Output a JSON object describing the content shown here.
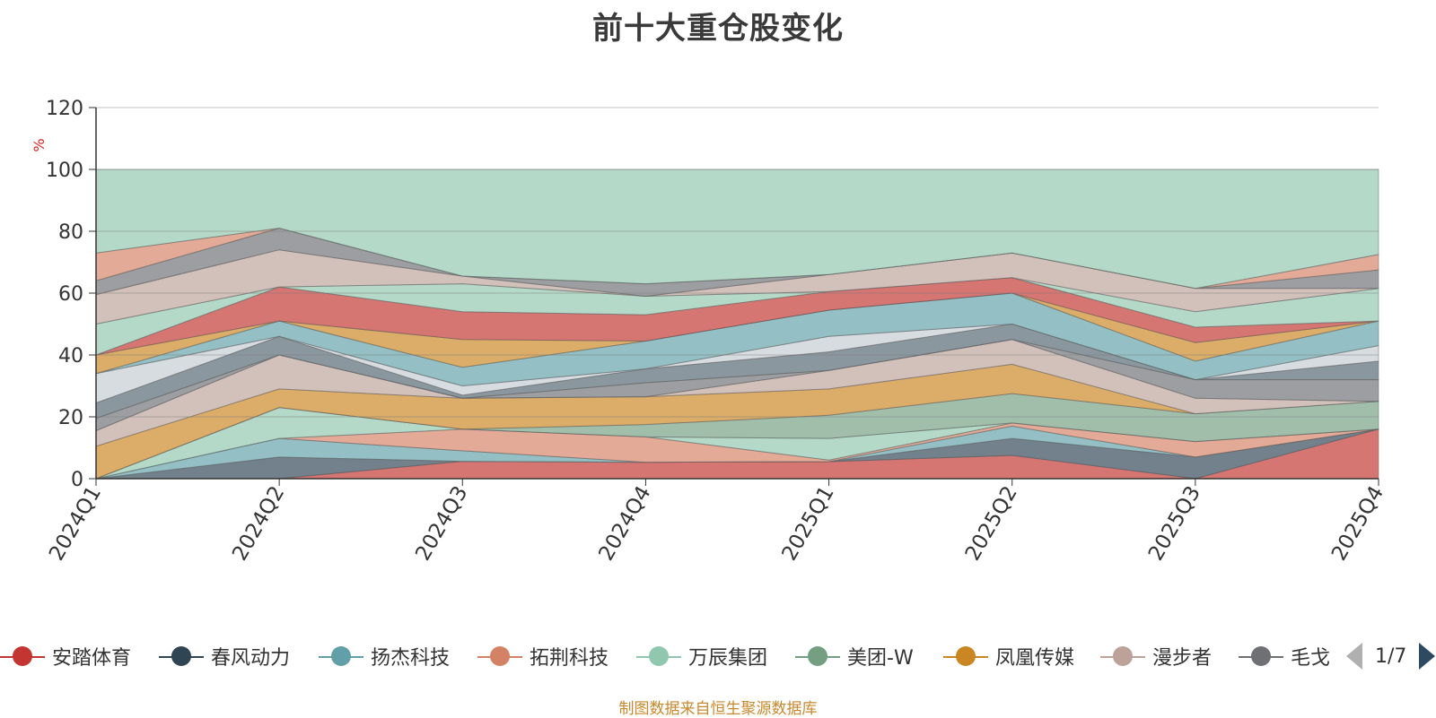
{
  "chart_data": {
    "type": "area",
    "title": "前十大重仓股变化",
    "ylabel": "%",
    "ylim": [
      0,
      120
    ],
    "yticks": [
      "0",
      "20",
      "40",
      "60",
      "80",
      "100",
      "120"
    ],
    "categories": [
      "2024Q1",
      "2024Q2",
      "2024Q3",
      "2024Q4",
      "2025Q1",
      "2025Q2",
      "2025Q3",
      "2025Q4"
    ],
    "grid": true,
    "legend_position": "bottom",
    "stacked_boundaries": [
      {
        "color": "#c23531",
        "values": [
          0,
          0,
          5.6,
          5.3,
          5.5,
          7.5,
          0,
          16
        ]
      },
      {
        "color": "#2f4554",
        "values": [
          0,
          7,
          5.6,
          5.3,
          5.5,
          13,
          7,
          16
        ]
      },
      {
        "color": "#61a0a8",
        "values": [
          0,
          13,
          9,
          5.3,
          5.5,
          17,
          7,
          16
        ]
      },
      {
        "color": "#d48265",
        "values": [
          0,
          13,
          16,
          13.5,
          6,
          18,
          12,
          16
        ]
      },
      {
        "color": "#91c7ae",
        "values": [
          0,
          23,
          16,
          13.5,
          13,
          18,
          12,
          16
        ]
      },
      {
        "color": "#749f83",
        "values": [
          0,
          23,
          16,
          17.5,
          20.5,
          27.5,
          21,
          25
        ]
      },
      {
        "color": "#ca8622",
        "values": [
          10.5,
          29,
          26,
          26.5,
          29,
          37,
          21,
          25
        ]
      },
      {
        "color": "#bda29a",
        "values": [
          15.5,
          40,
          26,
          26.5,
          35,
          45,
          26,
          25
        ]
      },
      {
        "color": "#6e7074",
        "values": [
          19.5,
          40,
          26,
          31,
          35,
          45,
          32,
          32
        ]
      },
      {
        "color": "#546570",
        "values": [
          24.5,
          46,
          27,
          35.5,
          41,
          50,
          32,
          38
        ]
      },
      {
        "color": "#c4ccd3",
        "values": [
          34,
          46,
          30,
          35.5,
          46,
          50,
          32,
          43
        ]
      },
      {
        "color": "#61a0a8",
        "values": [
          34,
          51,
          36,
          44.5,
          54.5,
          60,
          38,
          51
        ]
      },
      {
        "color": "#ca8622",
        "values": [
          40,
          51,
          45,
          44.5,
          54.5,
          60,
          44,
          51
        ]
      },
      {
        "color": "#c23531",
        "values": [
          40,
          62,
          54,
          53,
          60.5,
          65,
          49,
          51
        ]
      },
      {
        "color": "#91c7ae",
        "values": [
          50,
          62,
          63,
          59,
          60.5,
          65,
          54,
          61.5
        ]
      },
      {
        "color": "#bda29a",
        "values": [
          59.5,
          74,
          65.5,
          59,
          66,
          73,
          61.5,
          61.5
        ]
      },
      {
        "color": "#6e7074",
        "values": [
          64,
          81,
          65.5,
          63,
          66,
          73,
          61.5,
          67.5
        ]
      },
      {
        "color": "#d48265",
        "values": [
          73,
          81,
          65.5,
          63,
          66,
          73,
          61.5,
          72.5
        ]
      },
      {
        "color": "#91c7ae",
        "values": [
          100,
          100,
          100,
          100,
          100,
          100,
          100,
          100
        ]
      }
    ],
    "series": [
      {
        "name": "安踏体育",
        "color": "#c23531"
      },
      {
        "name": "春风动力",
        "color": "#2f4554"
      },
      {
        "name": "扬杰科技",
        "color": "#61a0a8"
      },
      {
        "name": "拓荆科技",
        "color": "#d48265"
      },
      {
        "name": "万辰集团",
        "color": "#91c7ae"
      },
      {
        "name": "美团-W",
        "color": "#749f83"
      },
      {
        "name": "凤凰传媒",
        "color": "#ca8622"
      },
      {
        "name": "漫步者",
        "color": "#bda29a"
      },
      {
        "name": "毛戈",
        "color": "#6e7074"
      }
    ]
  },
  "legend": {
    "page_text": "1/7",
    "prev_icon": "triangle-left-icon",
    "next_icon": "triangle-right-icon"
  },
  "source_note": "制图数据来自恒生聚源数据库"
}
